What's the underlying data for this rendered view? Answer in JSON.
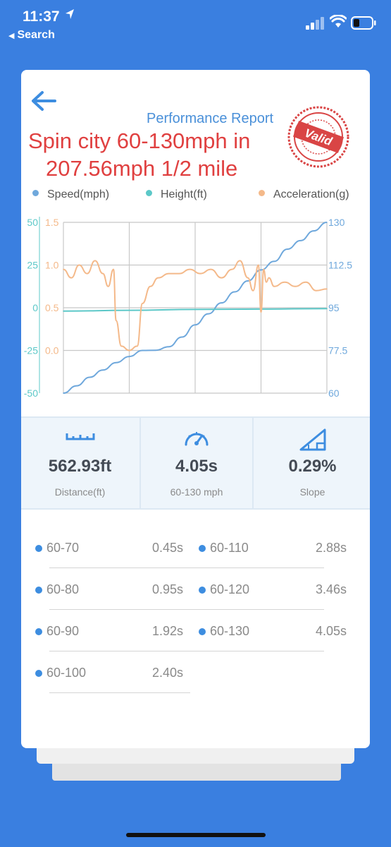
{
  "status": {
    "time": "11:37",
    "back_label": "Search"
  },
  "header": {
    "report_title": "Performance Report",
    "headline_line1": "Spin city 60-130mph in",
    "headline_line2": "207.56mph 1/2 mile",
    "stamp_text": "Valid"
  },
  "legend": [
    {
      "label": "Speed(mph)",
      "color": "#6fa8dc"
    },
    {
      "label": "Height(ft)",
      "color": "#5cc8c8"
    },
    {
      "label": "Acceleration(g)",
      "color": "#f4b98a"
    }
  ],
  "chart_data": {
    "type": "line",
    "axes": {
      "left_outer": {
        "ticks": [
          "50",
          "25",
          "0",
          "-25",
          "-50"
        ],
        "color": "#5cc8c8",
        "range": [
          -50,
          50
        ]
      },
      "left_inner": {
        "ticks": [
          "1.5",
          "1.0",
          "0.5",
          "0.0"
        ],
        "color": "#f4b98a",
        "range": [
          -0.5,
          1.5
        ]
      },
      "right": {
        "ticks": [
          "130",
          "112.5",
          "95",
          "77.5",
          "60"
        ],
        "color": "#6fa8dc",
        "range": [
          60,
          130
        ]
      }
    },
    "grid": true,
    "series": [
      {
        "name": "Speed(mph)",
        "color": "#6fa8dc",
        "axis": "right",
        "x": [
          0,
          0.05,
          0.1,
          0.15,
          0.2,
          0.25,
          0.3,
          0.35,
          0.4,
          0.45,
          0.5,
          0.55,
          0.6,
          0.65,
          0.7,
          0.75,
          0.8,
          0.85,
          0.9,
          0.95,
          1.0
        ],
        "values": [
          60,
          63,
          66.5,
          69.5,
          72.5,
          75,
          77.5,
          77.6,
          79,
          83,
          88,
          92.5,
          97,
          101.5,
          106,
          110.5,
          114,
          119,
          122.5,
          126.5,
          130
        ]
      },
      {
        "name": "Height(ft)",
        "color": "#5cc8c8",
        "axis": "left_outer",
        "x": [
          0,
          0.25,
          0.5,
          0.75,
          1.0
        ],
        "values": [
          -2,
          -1.5,
          -1,
          -0.8,
          -0.5
        ]
      },
      {
        "name": "Acceleration(g)",
        "color": "#f4b98a",
        "axis": "left_inner",
        "x": [
          0,
          0.03,
          0.06,
          0.09,
          0.12,
          0.15,
          0.17,
          0.19,
          0.2,
          0.22,
          0.25,
          0.28,
          0.3,
          0.33,
          0.36,
          0.4,
          0.44,
          0.48,
          0.52,
          0.56,
          0.6,
          0.64,
          0.67,
          0.7,
          0.72,
          0.74,
          0.75,
          0.76,
          0.77,
          0.78,
          0.8,
          0.84,
          0.88,
          0.92,
          0.96,
          1.0
        ],
        "values": [
          0.95,
          0.85,
          1.0,
          0.9,
          1.05,
          0.9,
          0.75,
          0.95,
          0.35,
          0.05,
          0.0,
          0.05,
          0.55,
          0.75,
          0.85,
          0.9,
          0.9,
          0.95,
          0.9,
          0.95,
          0.85,
          0.95,
          1.05,
          0.85,
          0.7,
          1.0,
          0.45,
          0.95,
          0.8,
          0.85,
          0.75,
          0.8,
          0.75,
          0.8,
          0.7,
          0.72
        ]
      }
    ]
  },
  "stats": [
    {
      "icon": "ruler-icon",
      "value": "562.93ft",
      "label": "Distance(ft)"
    },
    {
      "icon": "speedometer-icon",
      "value": "4.05s",
      "label": "60-130 mph"
    },
    {
      "icon": "slope-icon",
      "value": "0.29%",
      "label": "Slope"
    }
  ],
  "splits": [
    {
      "label": "60-70",
      "value": "0.45s"
    },
    {
      "label": "60-80",
      "value": "0.95s"
    },
    {
      "label": "60-90",
      "value": "1.92s"
    },
    {
      "label": "60-100",
      "value": "2.40s"
    },
    {
      "label": "60-110",
      "value": "2.88s"
    },
    {
      "label": "60-120",
      "value": "3.46s"
    },
    {
      "label": "60-130",
      "value": "4.05s"
    }
  ]
}
